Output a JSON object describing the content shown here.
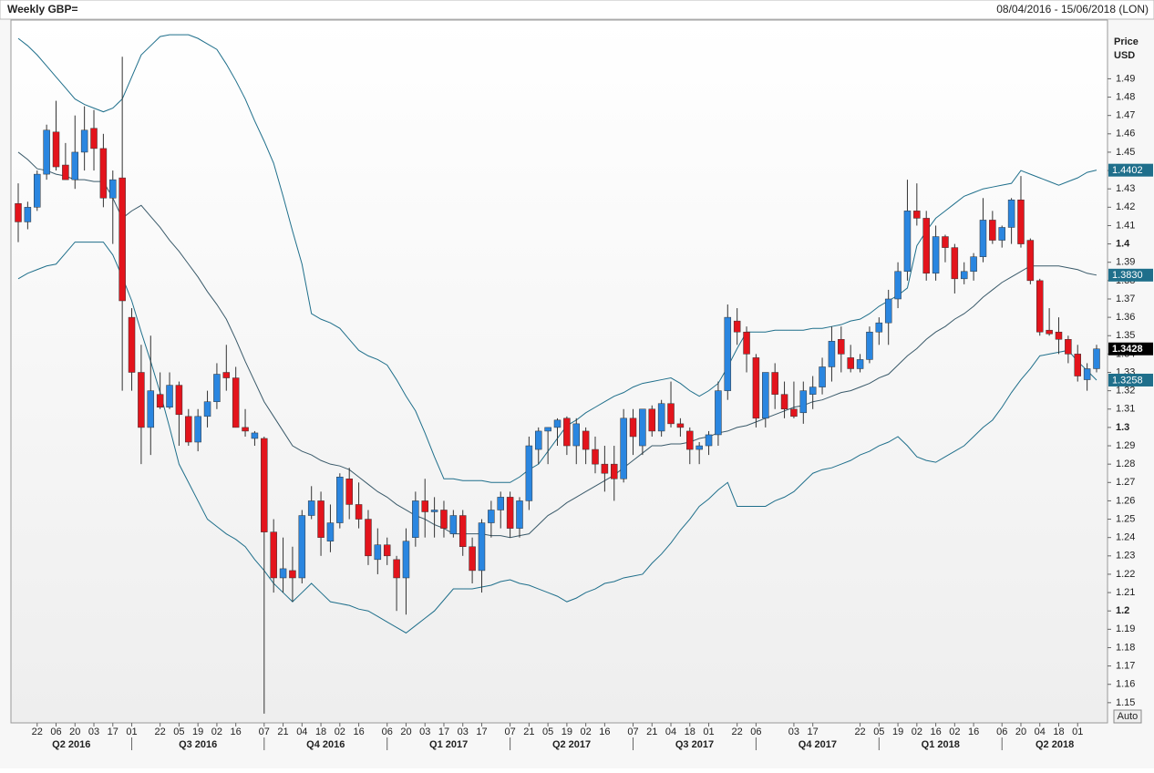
{
  "header": {
    "title": "Weekly GBP=",
    "range": "08/04/2016 - 15/06/2018 (LON)"
  },
  "chart_data": {
    "type": "candlestick",
    "axis_title": [
      "Price",
      "USD"
    ],
    "scale_mode": "Auto",
    "up_color": "#2a86e0",
    "down_color": "#e3141c",
    "band_color": "#1f6f8b",
    "ylim": [
      1.139,
      1.522
    ],
    "yticks": [
      1.15,
      1.16,
      1.17,
      1.18,
      1.19,
      1.2,
      1.21,
      1.22,
      1.23,
      1.24,
      1.25,
      1.26,
      1.27,
      1.28,
      1.29,
      1.3,
      1.31,
      1.32,
      1.33,
      1.34,
      1.35,
      1.36,
      1.37,
      1.38,
      1.39,
      1.4,
      1.41,
      1.42,
      1.43,
      1.44,
      1.45,
      1.46,
      1.47,
      1.48,
      1.49
    ],
    "categories": [
      null,
      null,
      "22",
      null,
      "06",
      null,
      "20",
      null,
      "03",
      null,
      "17",
      null,
      "01",
      null,
      null,
      "22",
      null,
      "05",
      null,
      "19",
      null,
      "02",
      null,
      "16",
      null,
      null,
      "07",
      null,
      "21",
      null,
      "04",
      null,
      "18",
      null,
      "02",
      null,
      "16",
      null,
      null,
      "06",
      null,
      "20",
      null,
      "03",
      null,
      "17",
      null,
      "03",
      null,
      "17",
      null,
      null,
      "07",
      null,
      "21",
      null,
      "05",
      null,
      "19",
      null,
      "02",
      null,
      "16",
      null,
      null,
      "07",
      null,
      "21",
      null,
      "04",
      null,
      "18",
      null,
      "01",
      null,
      null,
      "22",
      null,
      "06",
      null,
      null,
      null,
      "03",
      null,
      "17",
      null,
      null,
      null,
      null,
      "22",
      null,
      "05",
      null,
      "19",
      null,
      "02",
      null,
      "16",
      null,
      "02",
      null,
      "16",
      null,
      null,
      "06",
      null,
      "20",
      null,
      "04",
      null,
      "18",
      null,
      "01",
      null,
      null
    ],
    "quarters": [
      {
        "label": "Q2 2016",
        "start": 0
      },
      {
        "label": "Q3 2016",
        "start": 12
      },
      {
        "label": "Q4 2016",
        "start": 26
      },
      {
        "label": "Q1 2017",
        "start": 39
      },
      {
        "label": "Q2 2017",
        "start": 52
      },
      {
        "label": "Q3 2017",
        "start": 65
      },
      {
        "label": "Q4 2017",
        "start": 78
      },
      {
        "label": "Q1 2018",
        "start": 91
      },
      {
        "label": "Q2 2018",
        "start": 104
      }
    ],
    "open": [
      1.422,
      1.412,
      1.42,
      1.438,
      1.461,
      1.443,
      1.435,
      1.45,
      1.463,
      1.452,
      1.425,
      1.436,
      1.36,
      1.33,
      1.3,
      1.318,
      1.311,
      1.323,
      1.306,
      1.292,
      1.306,
      1.314,
      1.33,
      1.327,
      1.3,
      1.294,
      1.294,
      1.243,
      1.218,
      1.222,
      1.218,
      1.252,
      1.26,
      1.238,
      1.248,
      1.272,
      1.258,
      1.25,
      1.228,
      1.236,
      1.228,
      1.218,
      1.24,
      1.26,
      1.254,
      1.255,
      1.242,
      1.252,
      1.235,
      1.222,
      1.248,
      1.255,
      1.262,
      1.245,
      1.26,
      1.288,
      1.298,
      1.3,
      1.305,
      1.29,
      1.298,
      1.288,
      1.28,
      1.28,
      1.272,
      1.305,
      1.29,
      1.31,
      1.298,
      1.313,
      1.302,
      1.298,
      1.288,
      1.29,
      1.296,
      1.32,
      1.358,
      1.352,
      1.338,
      1.305,
      1.33,
      1.318,
      1.31,
      1.308,
      1.318,
      1.322,
      1.333,
      1.348,
      1.338,
      1.332,
      1.337,
      1.352,
      1.357,
      1.37,
      1.385,
      1.418,
      1.414,
      1.384,
      1.404,
      1.398,
      1.381,
      1.385,
      1.393,
      1.413,
      1.402,
      1.409,
      1.424,
      1.402,
      1.38,
      1.353,
      1.352,
      1.348,
      1.34,
      1.326,
      1.332
    ],
    "high": [
      1.433,
      1.423,
      1.44,
      1.465,
      1.478,
      1.455,
      1.47,
      1.475,
      1.473,
      1.46,
      1.44,
      1.502,
      1.365,
      1.345,
      1.35,
      1.33,
      1.33,
      1.325,
      1.31,
      1.31,
      1.32,
      1.335,
      1.345,
      1.333,
      1.31,
      1.298,
      1.295,
      1.25,
      1.24,
      1.235,
      1.255,
      1.268,
      1.265,
      1.258,
      1.275,
      1.278,
      1.27,
      1.255,
      1.245,
      1.24,
      1.23,
      1.245,
      1.265,
      1.272,
      1.262,
      1.26,
      1.255,
      1.255,
      1.24,
      1.25,
      1.26,
      1.265,
      1.265,
      1.262,
      1.295,
      1.3,
      1.3,
      1.305,
      1.306,
      1.305,
      1.3,
      1.295,
      1.29,
      1.29,
      1.31,
      1.31,
      1.31,
      1.312,
      1.315,
      1.325,
      1.305,
      1.3,
      1.292,
      1.298,
      1.325,
      1.367,
      1.365,
      1.355,
      1.34,
      1.33,
      1.335,
      1.325,
      1.325,
      1.325,
      1.328,
      1.338,
      1.355,
      1.355,
      1.345,
      1.34,
      1.355,
      1.36,
      1.375,
      1.39,
      1.435,
      1.433,
      1.418,
      1.41,
      1.405,
      1.4,
      1.39,
      1.395,
      1.425,
      1.418,
      1.41,
      1.425,
      1.437,
      1.403,
      1.381,
      1.365,
      1.36,
      1.35,
      1.345,
      1.335,
      1.345
    ],
    "low": [
      1.401,
      1.408,
      1.418,
      1.435,
      1.44,
      1.435,
      1.43,
      1.44,
      1.44,
      1.42,
      1.4,
      1.32,
      1.32,
      1.28,
      1.285,
      1.31,
      1.31,
      1.29,
      1.29,
      1.287,
      1.3,
      1.31,
      1.32,
      1.3,
      1.295,
      1.29,
      1.144,
      1.21,
      1.21,
      1.205,
      1.215,
      1.25,
      1.23,
      1.232,
      1.245,
      1.25,
      1.245,
      1.225,
      1.22,
      1.225,
      1.2,
      1.198,
      1.235,
      1.24,
      1.24,
      1.24,
      1.24,
      1.23,
      1.215,
      1.21,
      1.24,
      1.245,
      1.24,
      1.24,
      1.255,
      1.28,
      1.28,
      1.29,
      1.285,
      1.28,
      1.28,
      1.275,
      1.265,
      1.26,
      1.27,
      1.285,
      1.285,
      1.295,
      1.295,
      1.3,
      1.295,
      1.28,
      1.28,
      1.285,
      1.29,
      1.315,
      1.345,
      1.33,
      1.3,
      1.3,
      1.31,
      1.305,
      1.305,
      1.302,
      1.31,
      1.318,
      1.325,
      1.33,
      1.33,
      1.33,
      1.335,
      1.345,
      1.345,
      1.365,
      1.38,
      1.41,
      1.38,
      1.38,
      1.39,
      1.373,
      1.378,
      1.38,
      1.39,
      1.4,
      1.398,
      1.4,
      1.398,
      1.378,
      1.35,
      1.35,
      1.34,
      1.335,
      1.325,
      1.32,
      1.33
    ],
    "close": [
      1.412,
      1.42,
      1.438,
      1.462,
      1.442,
      1.435,
      1.45,
      1.462,
      1.452,
      1.425,
      1.435,
      1.369,
      1.33,
      1.3,
      1.32,
      1.311,
      1.323,
      1.307,
      1.292,
      1.306,
      1.314,
      1.329,
      1.327,
      1.3,
      1.298,
      1.297,
      1.243,
      1.218,
      1.223,
      1.218,
      1.252,
      1.26,
      1.24,
      1.248,
      1.273,
      1.258,
      1.25,
      1.23,
      1.236,
      1.23,
      1.218,
      1.238,
      1.26,
      1.254,
      1.255,
      1.245,
      1.252,
      1.235,
      1.222,
      1.248,
      1.255,
      1.262,
      1.245,
      1.26,
      1.29,
      1.298,
      1.3,
      1.304,
      1.29,
      1.302,
      1.288,
      1.28,
      1.275,
      1.272,
      1.305,
      1.295,
      1.31,
      1.298,
      1.313,
      1.302,
      1.3,
      1.288,
      1.29,
      1.296,
      1.32,
      1.36,
      1.352,
      1.34,
      1.305,
      1.33,
      1.318,
      1.31,
      1.306,
      1.32,
      1.322,
      1.333,
      1.347,
      1.34,
      1.332,
      1.337,
      1.352,
      1.357,
      1.37,
      1.385,
      1.418,
      1.414,
      1.384,
      1.404,
      1.398,
      1.381,
      1.385,
      1.393,
      1.413,
      1.402,
      1.409,
      1.424,
      1.4,
      1.38,
      1.352,
      1.351,
      1.348,
      1.34,
      1.328,
      1.332,
      1.3428
    ],
    "bands": {
      "upper": [
        1.512,
        1.508,
        1.503,
        1.497,
        1.491,
        1.485,
        1.479,
        1.476,
        1.474,
        1.472,
        1.474,
        1.479,
        1.491,
        1.503,
        1.508,
        1.513,
        1.514,
        1.514,
        1.514,
        1.512,
        1.509,
        1.506,
        1.498,
        1.489,
        1.479,
        1.467,
        1.456,
        1.444,
        1.426,
        1.407,
        1.389,
        1.362,
        1.359,
        1.357,
        1.354,
        1.348,
        1.342,
        1.339,
        1.337,
        1.334,
        1.326,
        1.317,
        1.309,
        1.297,
        1.284,
        1.272,
        1.272,
        1.271,
        1.271,
        1.271,
        1.27,
        1.27,
        1.27,
        1.273,
        1.277,
        1.28,
        1.287,
        1.294,
        1.301,
        1.304,
        1.308,
        1.311,
        1.314,
        1.317,
        1.319,
        1.322,
        1.324,
        1.325,
        1.326,
        1.327,
        1.324,
        1.32,
        1.317,
        1.32,
        1.324,
        1.333,
        1.343,
        1.352,
        1.352,
        1.352,
        1.353,
        1.353,
        1.353,
        1.353,
        1.354,
        1.354,
        1.355,
        1.356,
        1.358,
        1.359,
        1.362,
        1.366,
        1.369,
        1.372,
        1.376,
        1.399,
        1.407,
        1.414,
        1.418,
        1.422,
        1.426,
        1.428,
        1.43,
        1.431,
        1.432,
        1.433,
        1.44,
        1.438,
        1.436,
        1.434,
        1.432,
        1.434,
        1.436,
        1.439,
        1.4402
      ],
      "middle": [
        1.45,
        1.446,
        1.441,
        1.44,
        1.438,
        1.437,
        1.435,
        1.435,
        1.434,
        1.434,
        1.425,
        1.414,
        1.418,
        1.421,
        1.415,
        1.409,
        1.402,
        1.396,
        1.389,
        1.382,
        1.374,
        1.367,
        1.359,
        1.348,
        1.336,
        1.325,
        1.314,
        1.306,
        1.298,
        1.29,
        1.287,
        1.285,
        1.282,
        1.28,
        1.279,
        1.277,
        1.273,
        1.269,
        1.265,
        1.262,
        1.258,
        1.255,
        1.252,
        1.25,
        1.247,
        1.245,
        1.242,
        1.242,
        1.242,
        1.242,
        1.241,
        1.241,
        1.24,
        1.241,
        1.242,
        1.247,
        1.252,
        1.255,
        1.259,
        1.262,
        1.265,
        1.268,
        1.271,
        1.274,
        1.278,
        1.282,
        1.286,
        1.29,
        1.29,
        1.291,
        1.291,
        1.292,
        1.294,
        1.295,
        1.297,
        1.298,
        1.3,
        1.301,
        1.303,
        1.305,
        1.307,
        1.309,
        1.311,
        1.312,
        1.314,
        1.315,
        1.317,
        1.319,
        1.32,
        1.322,
        1.324,
        1.327,
        1.329,
        1.334,
        1.339,
        1.343,
        1.348,
        1.352,
        1.355,
        1.359,
        1.362,
        1.366,
        1.371,
        1.375,
        1.379,
        1.382,
        1.385,
        1.388,
        1.388,
        1.388,
        1.388,
        1.387,
        1.386,
        1.384,
        1.383
      ],
      "lower": [
        1.381,
        1.384,
        1.386,
        1.388,
        1.389,
        1.395,
        1.401,
        1.401,
        1.401,
        1.401,
        1.394,
        1.382,
        1.369,
        1.352,
        1.336,
        1.319,
        1.3,
        1.28,
        1.27,
        1.26,
        1.25,
        1.246,
        1.242,
        1.239,
        1.235,
        1.228,
        1.222,
        1.215,
        1.21,
        1.205,
        1.21,
        1.215,
        1.21,
        1.205,
        1.204,
        1.203,
        1.201,
        1.2,
        1.197,
        1.194,
        1.191,
        1.188,
        1.192,
        1.196,
        1.2,
        1.206,
        1.212,
        1.212,
        1.212,
        1.213,
        1.214,
        1.216,
        1.217,
        1.215,
        1.214,
        1.212,
        1.21,
        1.208,
        1.205,
        1.207,
        1.21,
        1.212,
        1.215,
        1.216,
        1.218,
        1.219,
        1.22,
        1.226,
        1.231,
        1.237,
        1.244,
        1.25,
        1.257,
        1.261,
        1.266,
        1.27,
        1.257,
        1.257,
        1.257,
        1.257,
        1.26,
        1.262,
        1.265,
        1.27,
        1.275,
        1.277,
        1.278,
        1.28,
        1.282,
        1.285,
        1.287,
        1.29,
        1.292,
        1.295,
        1.29,
        1.284,
        1.282,
        1.281,
        1.284,
        1.287,
        1.29,
        1.295,
        1.3,
        1.304,
        1.311,
        1.319,
        1.326,
        1.332,
        1.339,
        1.34,
        1.341,
        1.342,
        1.336,
        1.331,
        1.3258
      ]
    },
    "price_tags": [
      {
        "value": 1.4402,
        "label": "1.4402",
        "kind": "band"
      },
      {
        "value": 1.383,
        "label": "1.3830",
        "kind": "band"
      },
      {
        "value": 1.3428,
        "label": "1.3428",
        "kind": "last"
      },
      {
        "value": 1.3258,
        "label": "1.3258",
        "kind": "band"
      }
    ]
  }
}
